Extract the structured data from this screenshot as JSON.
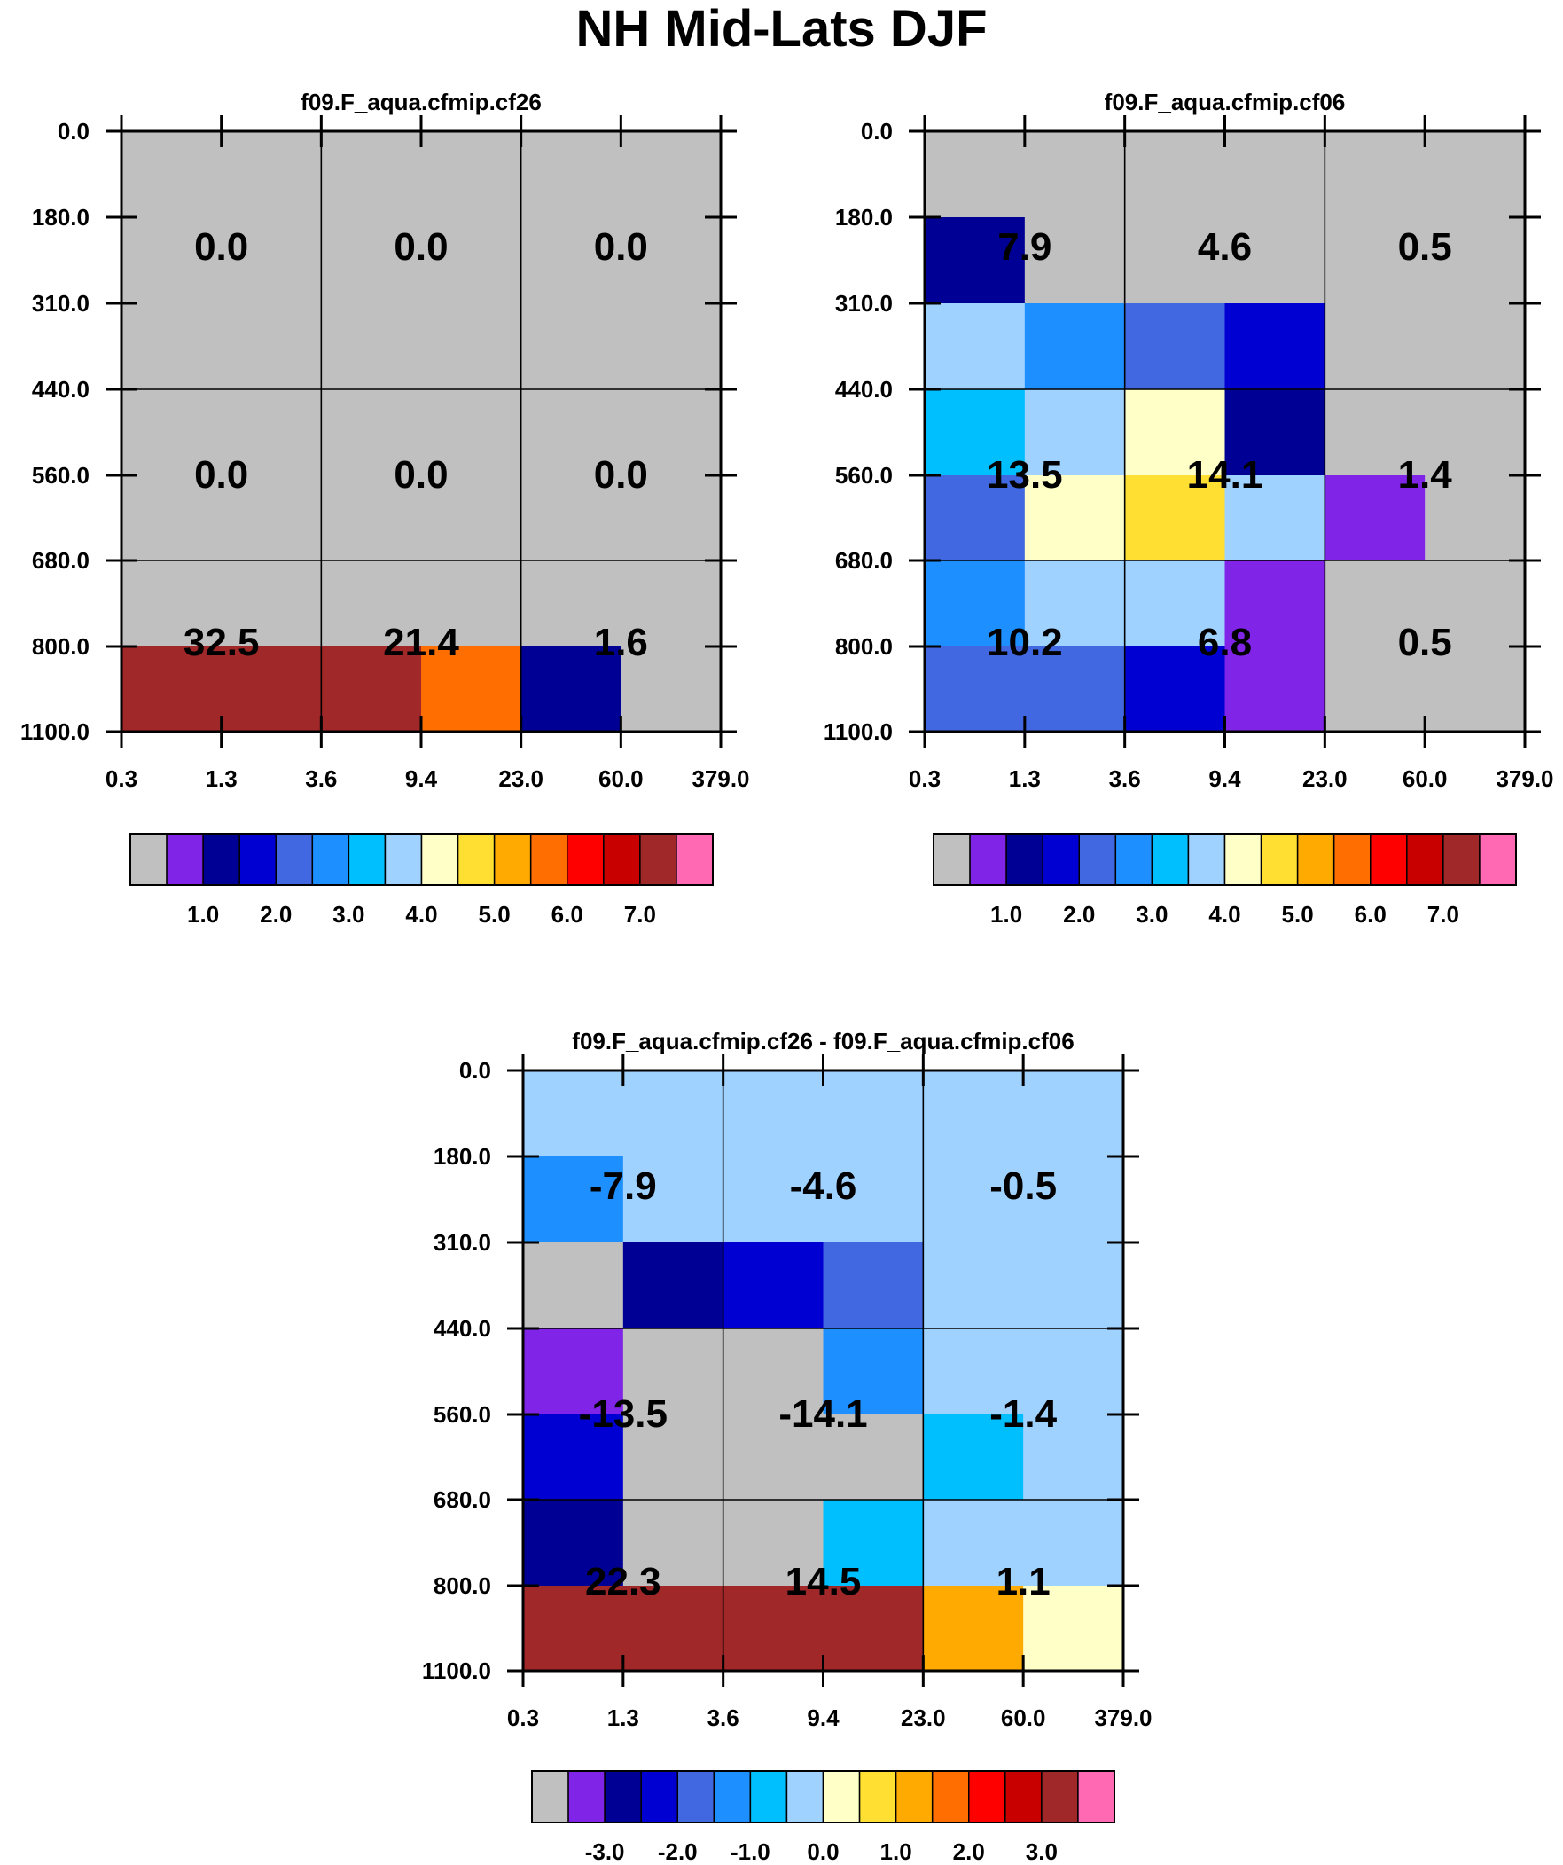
{
  "title": "NH Mid-Lats DJF",
  "chart_data": [
    {
      "type": "heatmap",
      "title": "f09.F_aqua.cfmip.cf26",
      "x_tick_labels": [
        "0.3",
        "1.3",
        "3.6",
        "9.4",
        "23.0",
        "60.0",
        "379.0"
      ],
      "y_tick_labels": [
        "0.0",
        "180.0",
        "310.0",
        "440.0",
        "560.0",
        "680.0",
        "800.0",
        "1100.0"
      ],
      "cells": [
        [
          0,
          0,
          0,
          0,
          0,
          0
        ],
        [
          0,
          0,
          0,
          0,
          0,
          0
        ],
        [
          0,
          0,
          0,
          0,
          0,
          0
        ],
        [
          0,
          0,
          0,
          0,
          0,
          0
        ],
        [
          0,
          0,
          0,
          0,
          0,
          0
        ],
        [
          0,
          0,
          0,
          0,
          0,
          0
        ],
        [
          14,
          14,
          14,
          11,
          2,
          0
        ]
      ],
      "block_values": [
        [
          "0.0",
          "0.0",
          "0.0"
        ],
        [
          "0.0",
          "0.0",
          "0.0"
        ],
        [
          "32.5",
          "21.4",
          "1.6"
        ]
      ],
      "colorbar": "abs"
    },
    {
      "type": "heatmap",
      "title": "f09.F_aqua.cfmip.cf06",
      "x_tick_labels": [
        "0.3",
        "1.3",
        "3.6",
        "9.4",
        "23.0",
        "60.0",
        "379.0"
      ],
      "y_tick_labels": [
        "0.0",
        "180.0",
        "310.0",
        "440.0",
        "560.0",
        "680.0",
        "800.0",
        "1100.0"
      ],
      "cells": [
        [
          0,
          0,
          0,
          0,
          0,
          0
        ],
        [
          2,
          0,
          0,
          0,
          0,
          0
        ],
        [
          7,
          5,
          4,
          3,
          0,
          0
        ],
        [
          6,
          7,
          8,
          2,
          0,
          0
        ],
        [
          4,
          8,
          9,
          7,
          1,
          0
        ],
        [
          5,
          7,
          7,
          1,
          0,
          0
        ],
        [
          4,
          4,
          3,
          1,
          0,
          0
        ]
      ],
      "block_values": [
        [
          "7.9",
          "4.6",
          "0.5"
        ],
        [
          "13.5",
          "14.1",
          "1.4"
        ],
        [
          "10.2",
          "6.8",
          "0.5"
        ]
      ],
      "colorbar": "abs"
    },
    {
      "type": "heatmap",
      "title": "f09.F_aqua.cfmip.cf26 - f09.F_aqua.cfmip.cf06",
      "x_tick_labels": [
        "0.3",
        "1.3",
        "3.6",
        "9.4",
        "23.0",
        "60.0",
        "379.0"
      ],
      "y_tick_labels": [
        "0.0",
        "180.0",
        "310.0",
        "440.0",
        "560.0",
        "680.0",
        "800.0",
        "1100.0"
      ],
      "cells": [
        [
          7,
          7,
          7,
          7,
          7,
          7
        ],
        [
          5,
          7,
          7,
          7,
          7,
          7
        ],
        [
          0,
          2,
          3,
          4,
          7,
          7
        ],
        [
          1,
          0,
          0,
          5,
          7,
          7
        ],
        [
          3,
          0,
          0,
          0,
          6,
          7
        ],
        [
          2,
          0,
          0,
          6,
          7,
          7
        ],
        [
          14,
          14,
          14,
          14,
          10,
          8
        ]
      ],
      "block_values": [
        [
          "-7.9",
          "-4.6",
          "-0.5"
        ],
        [
          "-13.5",
          "-14.1",
          "-1.4"
        ],
        [
          "22.3",
          "14.5",
          "1.1"
        ]
      ],
      "colorbar": "diff"
    }
  ],
  "colorbars": {
    "abs": {
      "labels": [
        "1.0",
        "2.0",
        "3.0",
        "4.0",
        "5.0",
        "6.0",
        "7.0"
      ],
      "label_bounds": [
        2,
        4,
        6,
        8,
        10,
        12,
        14
      ]
    },
    "diff": {
      "labels": [
        "-3.0",
        "-2.0",
        "-1.0",
        "0.0",
        "1.0",
        "2.0",
        "3.0"
      ],
      "label_bounds": [
        2,
        4,
        6,
        8,
        10,
        12,
        14
      ]
    }
  },
  "palette": [
    "#c0c0c0",
    "#8024e8",
    "#000094",
    "#0000d2",
    "#4168e0",
    "#1e8fff",
    "#00bfff",
    "#a0d2ff",
    "#ffffc8",
    "#ffe032",
    "#ffaa00",
    "#ff6e00",
    "#ff0000",
    "#c80000",
    "#a02828",
    "#ff69b4"
  ]
}
